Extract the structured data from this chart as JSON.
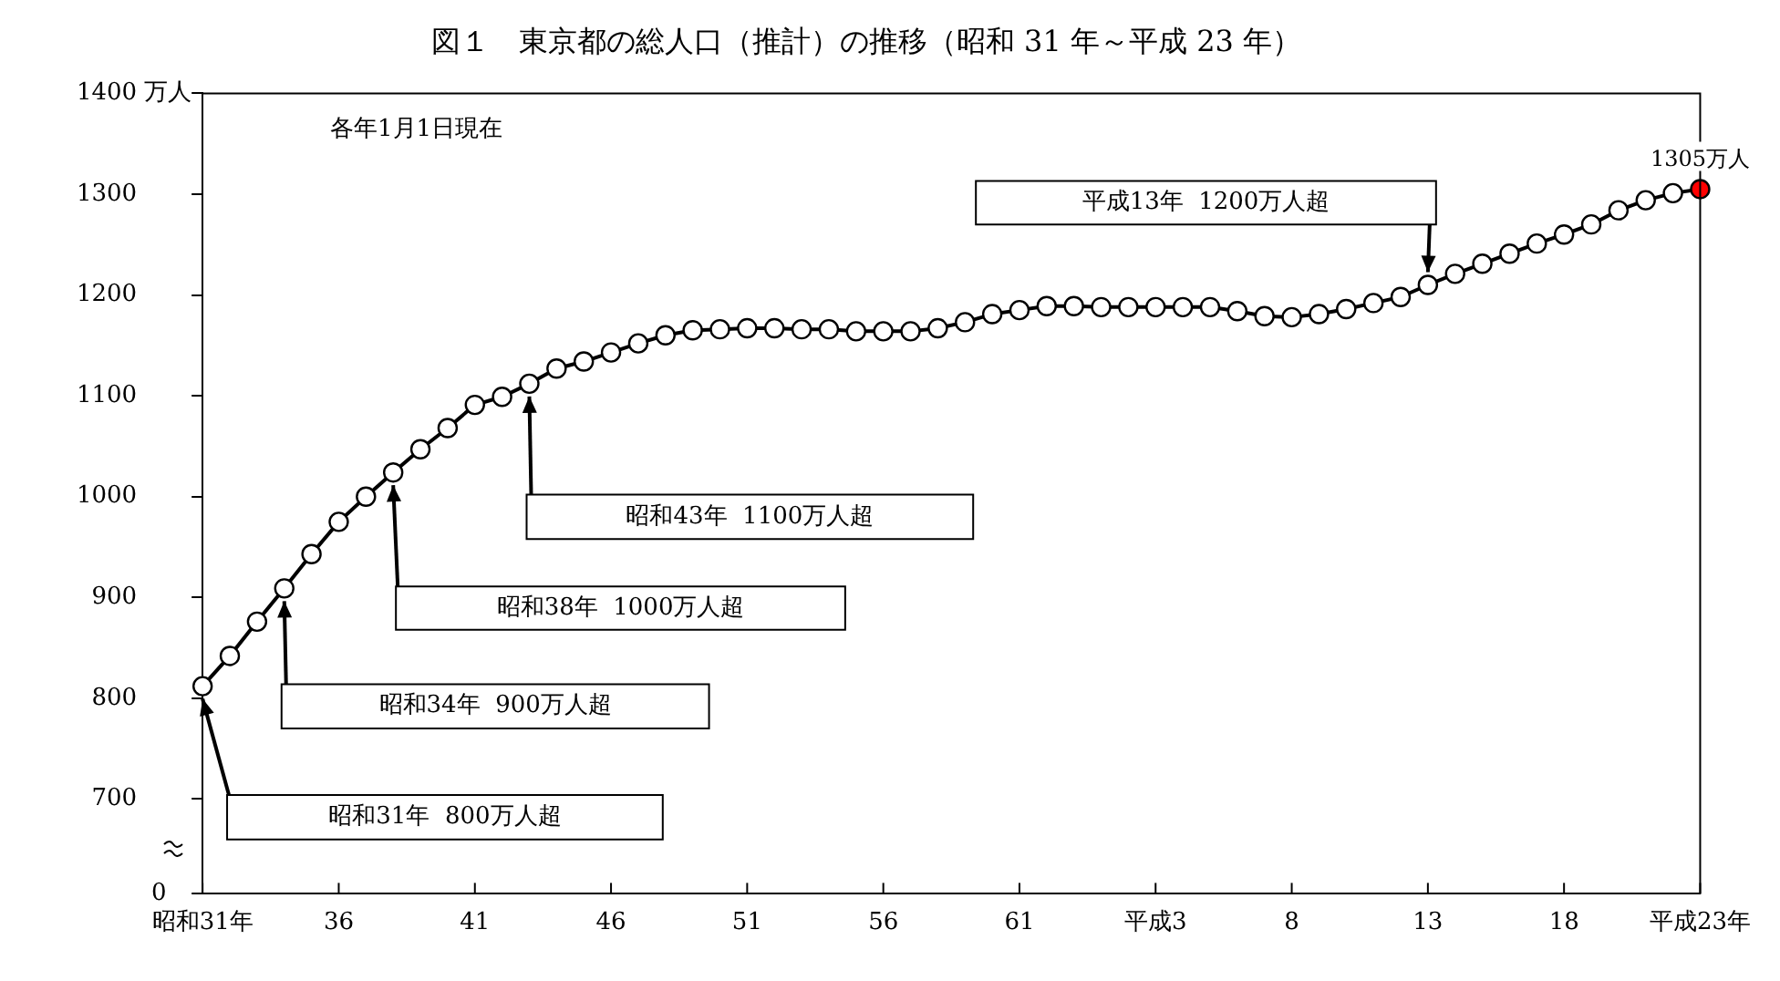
{
  "chart_data": {
    "type": "line",
    "title": "図１　東京都の総人口（推計）の推移（昭和 31 年～平成 23 年）",
    "ylabel": "万人",
    "categories": [
      "昭和31年",
      null,
      null,
      null,
      null,
      "36",
      null,
      null,
      null,
      null,
      "41",
      null,
      null,
      null,
      null,
      "46",
      null,
      null,
      null,
      null,
      "51",
      null,
      null,
      null,
      null,
      "56",
      null,
      null,
      null,
      null,
      "61",
      null,
      null,
      null,
      null,
      "平成3",
      null,
      null,
      null,
      null,
      "8",
      null,
      null,
      null,
      null,
      "13",
      null,
      null,
      null,
      null,
      "18",
      null,
      null,
      null,
      null,
      "平成23年"
    ],
    "series": [
      {
        "color": "#000000",
        "values": [
          812,
          842,
          876,
          909,
          943,
          975,
          1000,
          1024,
          1047,
          1068,
          1091,
          1099,
          1112,
          1127,
          1134,
          1143,
          1152,
          1160,
          1165,
          1166,
          1167,
          1167,
          1166,
          1166,
          1164,
          1164,
          1164,
          1167,
          1173,
          1181,
          1185,
          1189,
          1189,
          1188,
          1188,
          1188,
          1188,
          1188,
          1184,
          1179,
          1178,
          1181,
          1186,
          1192,
          1198,
          1210,
          1221,
          1231,
          1241,
          1251,
          1260,
          1270,
          1284,
          1294,
          1301,
          1305
        ],
        "colors": [
          "#ffffff",
          "#ffffff",
          "#ffffff",
          "#ffffff",
          "#ffffff",
          "#ffffff",
          "#ffffff",
          "#ffffff",
          "#ffffff",
          "#ffffff",
          "#ffffff",
          "#ffffff",
          "#ffffff",
          "#ffffff",
          "#ffffff",
          "#ffffff",
          "#ffffff",
          "#ffffff",
          "#ffffff",
          "#ffffff",
          "#ffffff",
          "#ffffff",
          "#ffffff",
          "#ffffff",
          "#ffffff",
          "#ffffff",
          "#ffffff",
          "#ffffff",
          "#ffffff",
          "#ffffff",
          "#ffffff",
          "#ffffff",
          "#ffffff",
          "#ffffff",
          "#ffffff",
          "#ffffff",
          "#ffffff",
          "#ffffff",
          "#ffffff",
          "#ffffff",
          "#ffffff",
          "#ffffff",
          "#ffffff",
          "#ffffff",
          "#ffffff",
          "#ffffff",
          "#ffffff",
          "#ffffff",
          "#ffffff",
          "#ffffff",
          "#ffffff",
          "#ffffff",
          "#ffffff",
          "#ffffff",
          "#ffffff",
          "#ff0000"
        ],
        "value_labels": [
          null,
          null,
          null,
          null,
          null,
          null,
          null,
          null,
          null,
          null,
          null,
          null,
          null,
          null,
          null,
          null,
          null,
          null,
          null,
          null,
          null,
          null,
          null,
          null,
          null,
          null,
          null,
          null,
          null,
          null,
          null,
          null,
          null,
          null,
          null,
          null,
          null,
          null,
          null,
          null,
          null,
          null,
          null,
          null,
          null,
          null,
          null,
          null,
          null,
          null,
          null,
          null,
          null,
          null,
          null,
          "1305万人"
        ]
      }
    ],
    "ylim": [
      606,
      1400
    ],
    "yticks": [
      {
        "value": 606,
        "label": null
      },
      700,
      800,
      900,
      1000,
      1100,
      1200,
      1300,
      1400
    ],
    "marker": "circle",
    "line_style": "solid",
    "legend": false,
    "annotations": [
      "各年1月1日現在",
      "昭和31年  800万人超",
      "昭和34年  900万人超",
      "昭和38年  1000万人超",
      "昭和43年  1100万人超",
      "平成13年  1200万人超",
      "0"
    ]
  }
}
